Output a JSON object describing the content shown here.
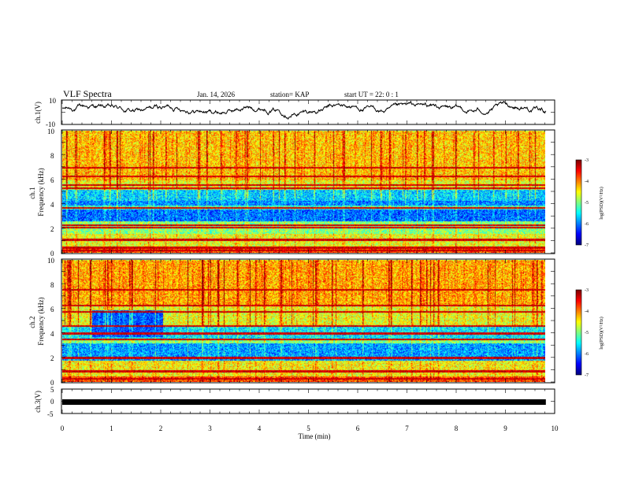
{
  "header": {
    "title": "VLF Spectra",
    "date": "Jan. 14, 2026",
    "station": "station= KAP",
    "start": "start  UT =  22: 0  : 1"
  },
  "chart_data": [
    {
      "type": "line",
      "name": "ch1-waveform",
      "ylabel": "ch.1(V)",
      "ylim": [
        -10,
        10
      ],
      "ytick_labels": [
        "10",
        "-10"
      ],
      "xlim": [
        0,
        10
      ],
      "x_end": 9.82,
      "description_trace": "random-walk",
      "trace": {
        "mean": 2.5,
        "amplitude": 3.5
      }
    },
    {
      "type": "heatmap",
      "name": "ch1-spectrogram",
      "ylabel": "ch.1\nFrequency (kHz)",
      "ylim": [
        0,
        10
      ],
      "ytick_labels": [
        "0",
        "2",
        "4",
        "6",
        "8",
        "10"
      ],
      "xlim": [
        0,
        10
      ],
      "x_end": 9.82,
      "colorbar": {
        "label": "log(PSD)(V²/Hz)",
        "range": [
          -7,
          -3
        ],
        "tick_labels": [
          "-3",
          "-4",
          "-5",
          "-6",
          "-7"
        ]
      },
      "bands": [
        {
          "from": 0.0,
          "to": 0.5,
          "level": -3.8
        },
        {
          "from": 0.5,
          "to": 1.6,
          "level": -4.6
        },
        {
          "from": 1.6,
          "to": 2.6,
          "level": -5.0
        },
        {
          "from": 2.6,
          "to": 3.6,
          "level": -6.1
        },
        {
          "from": 3.6,
          "to": 3.9,
          "level": -5.3
        },
        {
          "from": 3.9,
          "to": 4.3,
          "level": -6.0
        },
        {
          "from": 4.3,
          "to": 5.2,
          "level": -5.7
        },
        {
          "from": 5.2,
          "to": 6.0,
          "level": -4.6
        },
        {
          "from": 6.0,
          "to": 10.0,
          "level": -4.3
        }
      ],
      "lines": [
        0.2,
        0.45,
        1.1,
        2.1,
        2.3,
        3.7,
        5.3,
        5.6,
        6.3,
        7.0
      ]
    },
    {
      "type": "heatmap",
      "name": "ch2-spectrogram",
      "ylabel": "ch.2\nFrequency (kHz)",
      "ylim": [
        0,
        10
      ],
      "ytick_labels": [
        "0",
        "2",
        "4",
        "6",
        "8",
        "10"
      ],
      "xlim": [
        0,
        10
      ],
      "x_end": 9.82,
      "colorbar": {
        "label": "log(PSD)(V²/Hz)",
        "range": [
          -7,
          -3
        ],
        "tick_labels": [
          "-3",
          "-4",
          "-5",
          "-6",
          "-7"
        ]
      },
      "bands": [
        {
          "from": 0.0,
          "to": 0.5,
          "level": -3.8
        },
        {
          "from": 0.5,
          "to": 1.8,
          "level": -4.5
        },
        {
          "from": 1.8,
          "to": 3.2,
          "level": -5.9
        },
        {
          "from": 3.2,
          "to": 3.6,
          "level": -5.0
        },
        {
          "from": 3.6,
          "to": 4.6,
          "level": -5.6
        },
        {
          "from": 4.6,
          "to": 6.3,
          "level": -4.6
        },
        {
          "from": 6.3,
          "to": 10.0,
          "level": -4.2
        }
      ],
      "lines": [
        0.3,
        0.9,
        2.0,
        3.5,
        4.0,
        4.6,
        5.8,
        6.3,
        7.6
      ],
      "dark_patch": {
        "t_from": 0.6,
        "t_to": 2.05,
        "f_from": 3.7,
        "f_to": 5.9,
        "level": -6.2
      }
    },
    {
      "type": "line",
      "name": "ch3-waveform",
      "ylabel": "ch.3(V)",
      "ylim": [
        -5,
        5
      ],
      "ytick_labels": [
        "5",
        "0",
        "-5"
      ],
      "xlim": [
        0,
        10
      ],
      "x_end": 9.82,
      "trace": {
        "mean": 0.0,
        "amplitude": 0.6,
        "constant_band": true
      },
      "xlabel": "Time (min)",
      "xtick_labels": [
        "0",
        "1",
        "2",
        "3",
        "4",
        "5",
        "6",
        "7",
        "8",
        "9",
        "10"
      ]
    }
  ],
  "colors": {
    "axis": "#000000",
    "background": "#ffffff"
  }
}
